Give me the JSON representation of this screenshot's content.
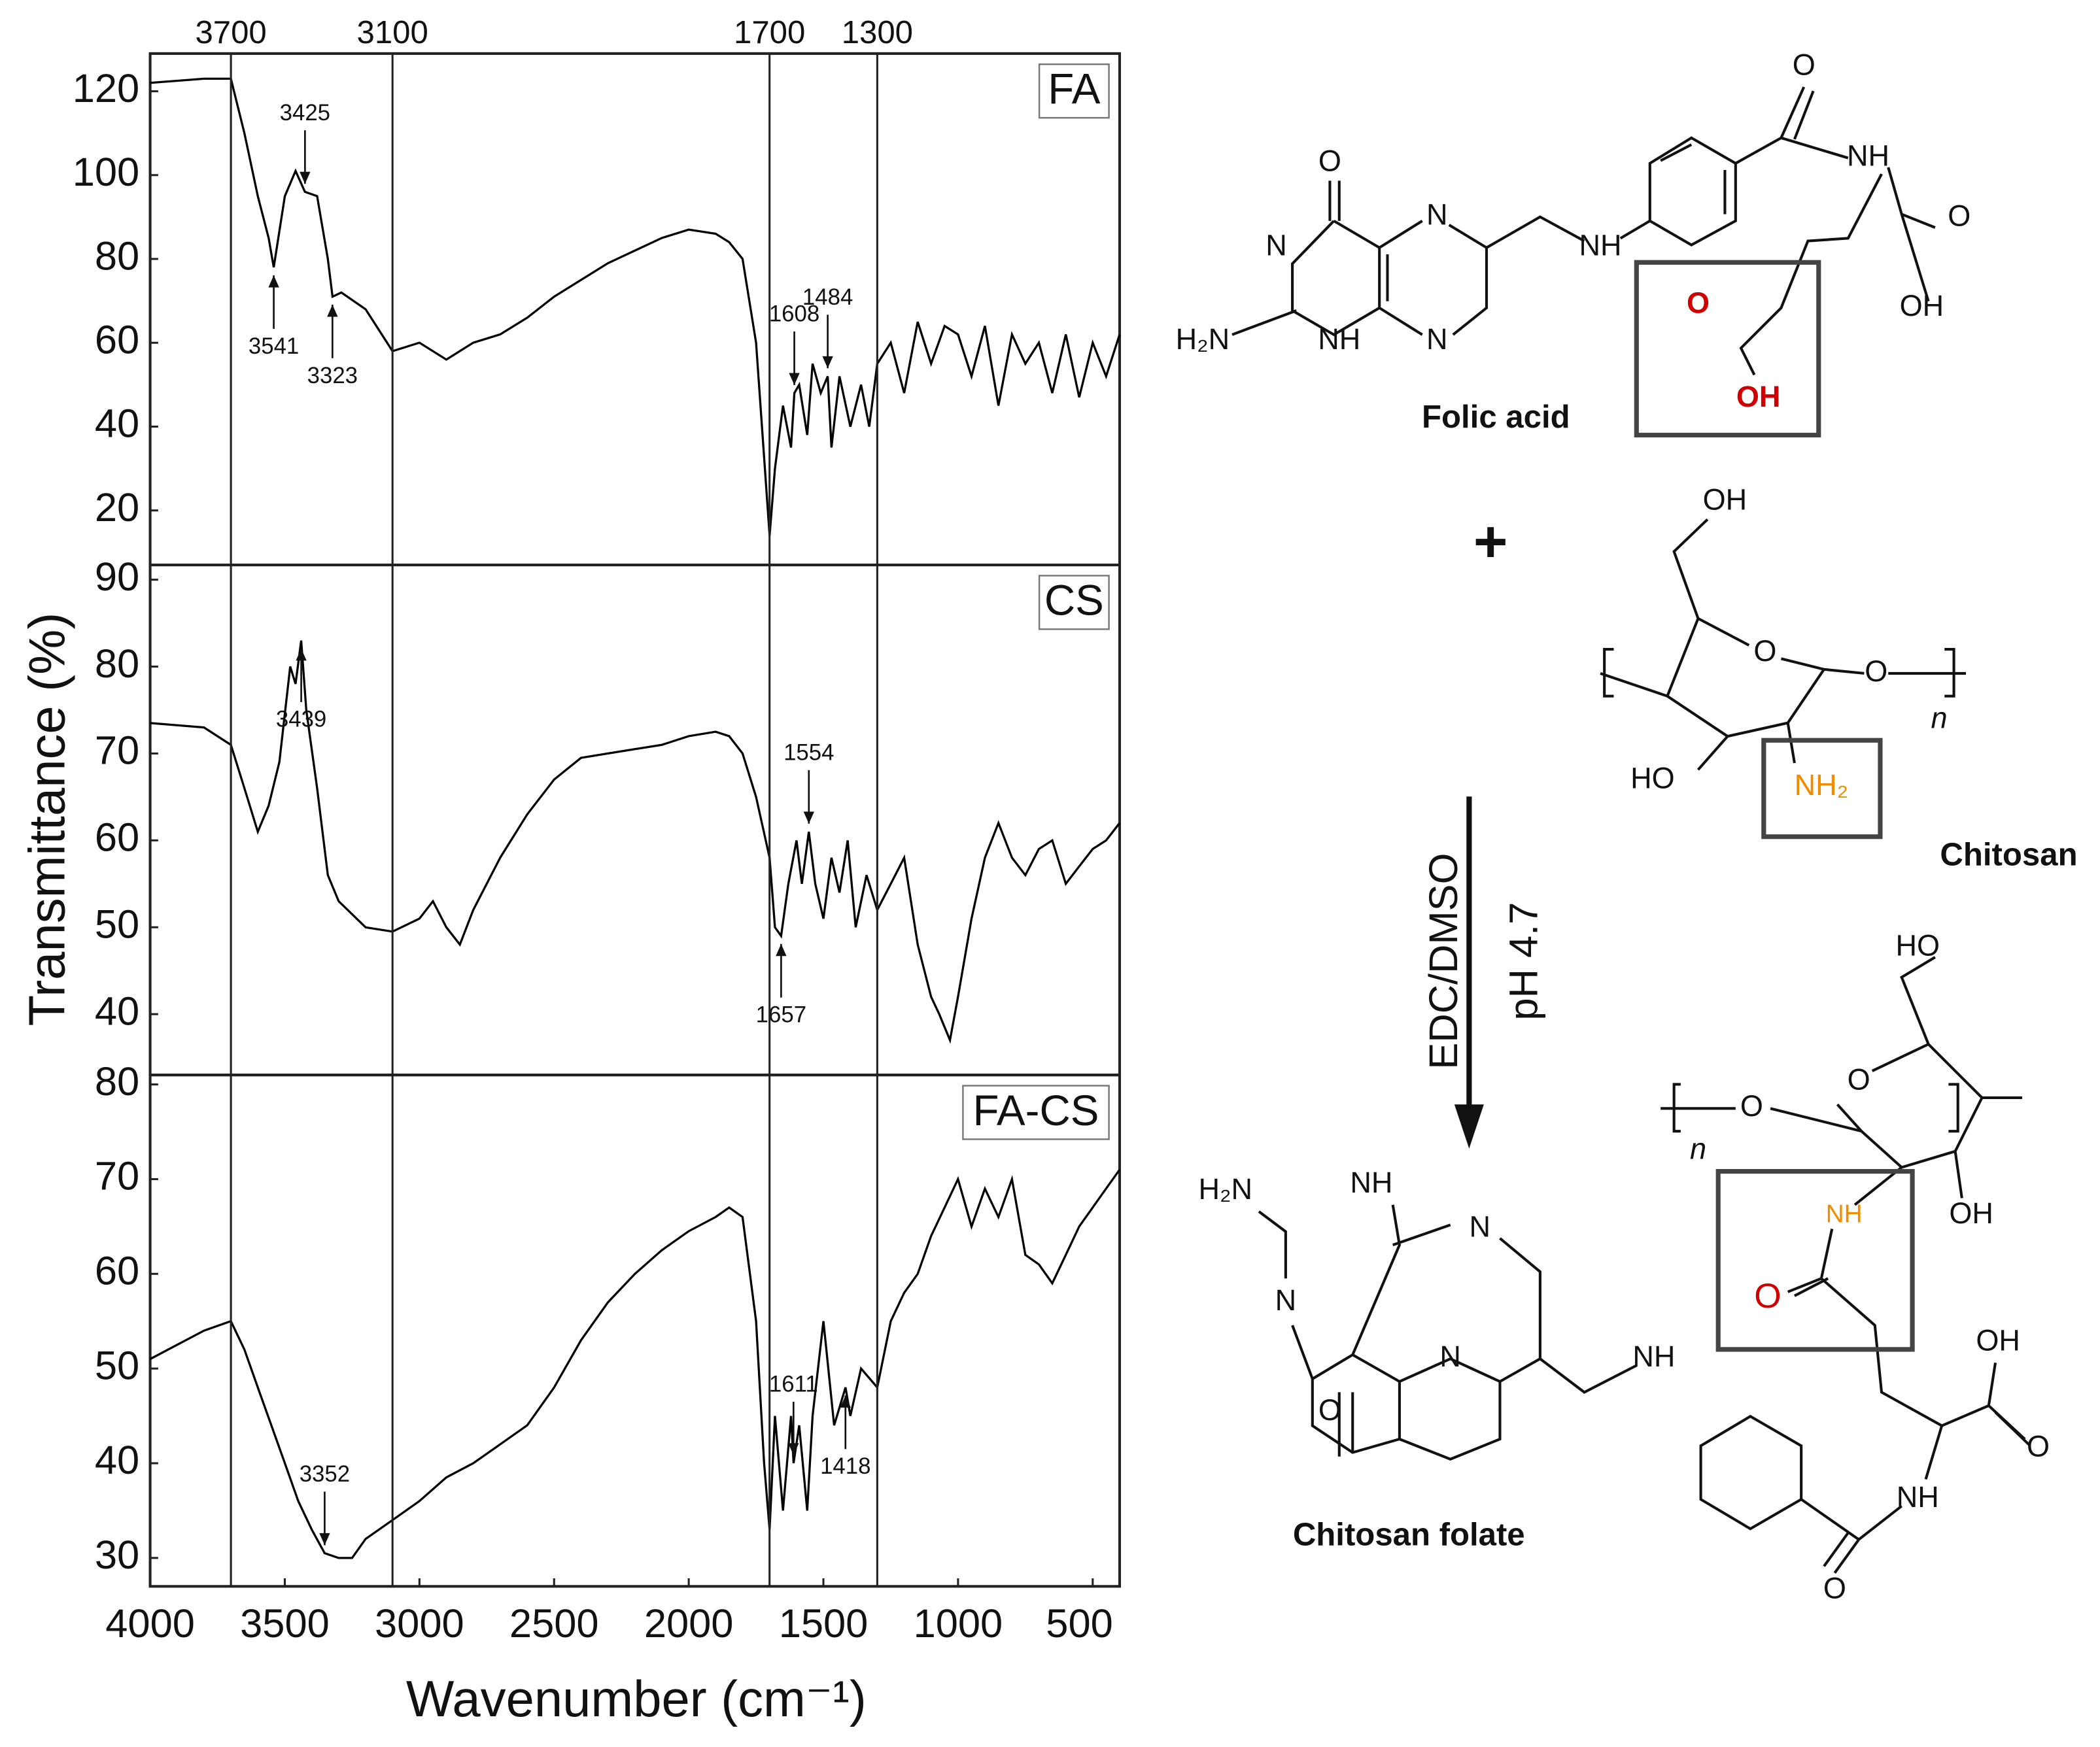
{
  "chart_data": [
    {
      "type": "line",
      "label": "FA",
      "color": "#000000",
      "xlim": [
        4000,
        400
      ],
      "ylim": [
        7,
        129
      ],
      "yticks": [
        20,
        40,
        60,
        80,
        100,
        120
      ],
      "vlines": [
        3700,
        3100,
        1700,
        1300
      ],
      "x": [
        4000,
        3800,
        3700,
        3650,
        3600,
        3560,
        3541,
        3500,
        3460,
        3425,
        3380,
        3340,
        3323,
        3290,
        3200,
        3100,
        3000,
        2900,
        2800,
        2700,
        2600,
        2500,
        2400,
        2300,
        2200,
        2100,
        2000,
        1900,
        1850,
        1800,
        1750,
        1700,
        1680,
        1650,
        1620,
        1608,
        1590,
        1560,
        1540,
        1510,
        1484,
        1470,
        1440,
        1400,
        1360,
        1330,
        1300,
        1250,
        1200,
        1150,
        1100,
        1050,
        1000,
        950,
        900,
        850,
        800,
        750,
        700,
        650,
        600,
        550,
        500,
        450,
        400
      ],
      "values": [
        122,
        123,
        123,
        110,
        95,
        85,
        78,
        95,
        101,
        96,
        95,
        80,
        71,
        72,
        68,
        58,
        60,
        56,
        60,
        62,
        66,
        71,
        75,
        79,
        82,
        85,
        87,
        86,
        84,
        80,
        60,
        14,
        30,
        45,
        35,
        48,
        50,
        38,
        55,
        48,
        52,
        35,
        52,
        40,
        50,
        40,
        55,
        60,
        48,
        65,
        55,
        64,
        62,
        52,
        64,
        45,
        62,
        55,
        60,
        48,
        62,
        47,
        60,
        52,
        62
      ],
      "annotations": [
        {
          "x": 3541,
          "dir": "up"
        },
        {
          "x": 3425,
          "dir": "down"
        },
        {
          "x": 3323,
          "dir": "up"
        },
        {
          "x": 1608,
          "dir": "down"
        },
        {
          "x": 1484,
          "dir": "down"
        }
      ]
    },
    {
      "type": "line",
      "label": "CS",
      "color": "#000000",
      "xlim": [
        4000,
        400
      ],
      "ylim": [
        33,
        91.7
      ],
      "yticks": [
        40,
        50,
        60,
        70,
        80,
        90
      ],
      "ylabel": "Transmittance (%)",
      "x": [
        4000,
        3800,
        3700,
        3650,
        3600,
        3560,
        3520,
        3480,
        3460,
        3439,
        3420,
        3380,
        3340,
        3300,
        3200,
        3100,
        3000,
        2950,
        2900,
        2850,
        2800,
        2700,
        2600,
        2500,
        2400,
        2300,
        2200,
        2100,
        2000,
        1900,
        1850,
        1800,
        1750,
        1700,
        1680,
        1657,
        1630,
        1600,
        1580,
        1554,
        1530,
        1500,
        1470,
        1440,
        1410,
        1380,
        1340,
        1300,
        1250,
        1200,
        1150,
        1100,
        1070,
        1030,
        1000,
        950,
        900,
        850,
        800,
        750,
        700,
        650,
        600,
        550,
        500,
        450,
        400
      ],
      "values": [
        73.5,
        73,
        71,
        66,
        61,
        64,
        69,
        80,
        78,
        83,
        75,
        66,
        56,
        53,
        50,
        49.5,
        51,
        53,
        50,
        48,
        52,
        58,
        63,
        67,
        69.5,
        70,
        70.5,
        71,
        72,
        72.5,
        72,
        70,
        65,
        58,
        50,
        49,
        55,
        60,
        55,
        61,
        55,
        51,
        58,
        54,
        60,
        50,
        56,
        52,
        55,
        58,
        48,
        42,
        40,
        37,
        42,
        51,
        58,
        62,
        58,
        56,
        59,
        60,
        55,
        57,
        59,
        60,
        62
      ],
      "annotations": [
        {
          "x": 3439,
          "dir": "up"
        },
        {
          "x": 1554,
          "dir": "down"
        },
        {
          "x": 1657,
          "dir": "up"
        }
      ]
    },
    {
      "type": "line",
      "label": "FA-CS",
      "color": "#000000",
      "xlim": [
        4000,
        400
      ],
      "ylim": [
        27,
        81
      ],
      "yticks": [
        30,
        40,
        50,
        60,
        70,
        80
      ],
      "xticks": [
        4000,
        3500,
        3000,
        2500,
        2000,
        1500,
        1000,
        500
      ],
      "xlabel": "Wavenumber (cm⁻¹)",
      "x": [
        4000,
        3800,
        3700,
        3650,
        3600,
        3550,
        3500,
        3450,
        3400,
        3352,
        3300,
        3250,
        3200,
        3100,
        3000,
        2900,
        2800,
        2700,
        2600,
        2500,
        2400,
        2300,
        2200,
        2100,
        2000,
        1900,
        1850,
        1800,
        1750,
        1720,
        1700,
        1680,
        1650,
        1620,
        1611,
        1590,
        1560,
        1540,
        1500,
        1460,
        1418,
        1400,
        1360,
        1300,
        1250,
        1200,
        1150,
        1100,
        1050,
        1000,
        950,
        900,
        850,
        800,
        750,
        700,
        650,
        600,
        550,
        500,
        450,
        400
      ],
      "values": [
        51,
        54,
        55,
        52,
        48,
        44,
        40,
        36,
        33,
        30.5,
        30,
        30,
        32,
        34,
        36,
        38.5,
        40,
        42,
        44,
        48,
        53,
        57,
        60,
        62.5,
        64.5,
        66,
        67,
        66,
        55,
        40,
        33,
        45,
        35,
        45,
        40,
        44,
        35,
        45,
        55,
        44,
        48,
        45,
        50,
        48,
        55,
        58,
        60,
        64,
        67,
        70,
        65,
        69,
        66,
        70,
        62,
        61,
        59,
        62,
        65,
        67,
        69,
        71
      ],
      "annotations": [
        {
          "x": 3352,
          "dir": "down"
        },
        {
          "x": 1611,
          "dir": "down"
        },
        {
          "x": 1418,
          "dir": "up"
        }
      ]
    }
  ],
  "scheme": {
    "folic_acid": {
      "name": "Folic acid",
      "atoms": [
        "O",
        "N",
        "N",
        "H₂N",
        "NH",
        "N",
        "NH",
        "O",
        "NH",
        "O",
        "OH",
        "O",
        "OH"
      ]
    },
    "plus": "+",
    "chitosan": {
      "name": "Chitosan",
      "atoms": [
        "OH",
        "O",
        "O",
        "HO",
        "NH₂",
        "n"
      ]
    },
    "conditions": [
      "EDC/DMSO",
      "pH 4.7"
    ],
    "product": {
      "name": "Chitosan folate",
      "atoms": [
        "HO",
        "O",
        "O",
        "n",
        "NH",
        "OH",
        "O",
        "OH",
        "O",
        "NH",
        "O",
        "H₂N",
        "NH",
        "N",
        "N",
        "O",
        "N",
        "NH"
      ]
    }
  }
}
